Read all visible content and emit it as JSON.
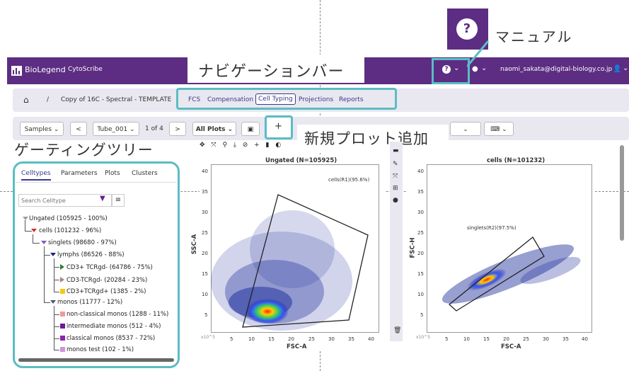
{
  "annotations": {
    "manual": "マニュアル",
    "navbar": "ナビゲーションバー",
    "new_plot": "新規プロット追加",
    "gating_tree": "ゲーティングツリー"
  },
  "help": {
    "icon": "?"
  },
  "navbar": {
    "brand": "BioLegend",
    "app": "CytoScribe",
    "user_email": "naomi_sakata@digital-biology.co.jp"
  },
  "breadcrumb": {
    "home_icon": "home-icon",
    "separator": "/",
    "project": "Copy of 16C - Spectral - TEMPLATE"
  },
  "tabs": [
    "FCS",
    "Compensation",
    "Cell Typing",
    "Projections",
    "Reports"
  ],
  "active_tab": "Cell Typing",
  "toolbar": {
    "samples": "Samples",
    "prev": "<",
    "tube": "Tube_001",
    "page": "1 of 4",
    "next": ">",
    "plots": "All Plots",
    "add": "+"
  },
  "left_panel": {
    "tabs": [
      "Celltypes",
      "Parameters",
      "Plots",
      "Clusters"
    ],
    "search_placeholder": "Search Celltype",
    "tree": [
      {
        "label": "Ungated (105925 - 100%)",
        "color": "#9e9e9e"
      },
      {
        "label": "cells (101232 - 96%)",
        "color": "#d32f2f"
      },
      {
        "label": "singlets (98680 - 97%)",
        "color": "#7e57c2"
      },
      {
        "label": "lymphs (86526 - 88%)",
        "color": "#1a237e"
      },
      {
        "label": "CD3+ TCRgd- (64786 - 75%)",
        "color": "#2e7d32"
      },
      {
        "label": "CD3-TCRgd- (20284 - 23%)",
        "color": "#a1887f"
      },
      {
        "label": "CD3+TCRgd+ (1385 - 2%)",
        "color": "#f9c80e"
      },
      {
        "label": "monos (11777 - 12%)",
        "color": "#455a64"
      },
      {
        "label": "non-classical monos (1288 - 11%)",
        "color": "#ef9a9a"
      },
      {
        "label": "intermediate monos (512 - 4%)",
        "color": "#6a1b9a"
      },
      {
        "label": "classical monos (8537 - 72%)",
        "color": "#8e24aa"
      },
      {
        "label": "monos test (102 - 1%)",
        "color": "#ce93d8"
      }
    ]
  },
  "plot1": {
    "title": "Ungated (N=105925)",
    "gate_label": "cells(R1)(95.6%)",
    "xlabel": "FSC-A",
    "ylabel": "SSC-A",
    "scale": "x10^5",
    "xticks": [
      "5",
      "10",
      "15",
      "20",
      "25",
      "30",
      "35",
      "40"
    ],
    "yticks": [
      "40",
      "35",
      "30",
      "25",
      "20",
      "15",
      "10",
      "5"
    ]
  },
  "plot2": {
    "title": "cells (N=101232)",
    "gate_label": "singlets(R2)(97.5%)",
    "xlabel": "FSC-A",
    "ylabel": "FSC-H",
    "scale": "x10^5",
    "xticks": [
      "5",
      "10",
      "15",
      "20",
      "25",
      "30",
      "35",
      "40"
    ],
    "yticks": [
      "40",
      "35",
      "30",
      "25",
      "20",
      "15",
      "10",
      "5"
    ]
  },
  "colors": {
    "brand": "#5c2d82",
    "callout": "#5bbcc4"
  }
}
